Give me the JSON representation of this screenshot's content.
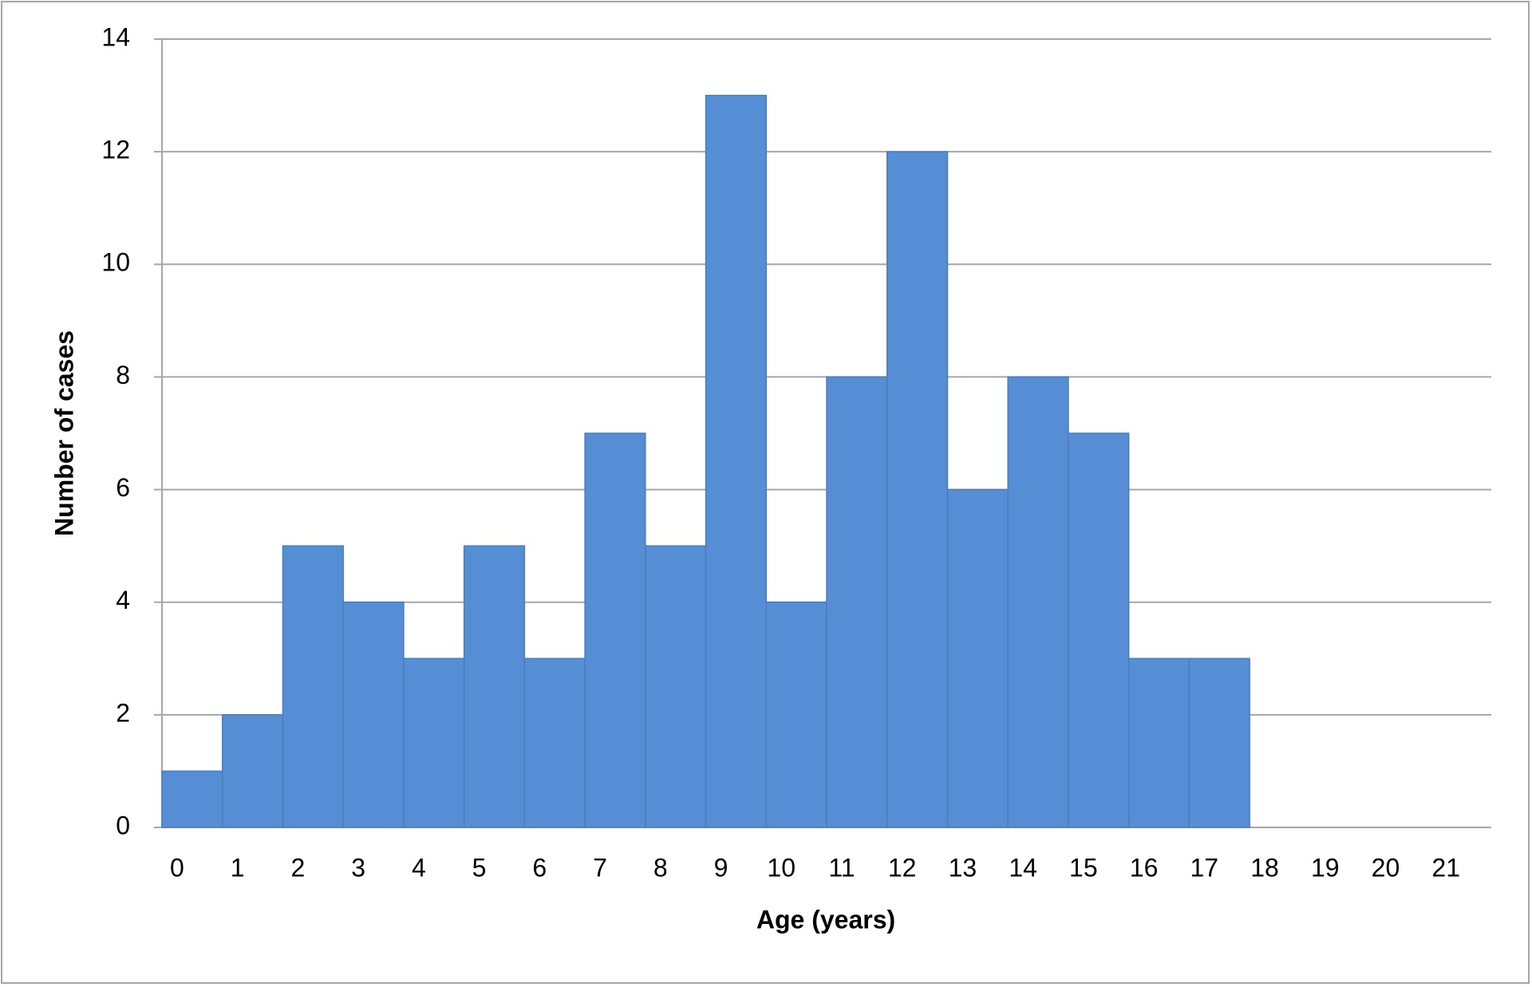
{
  "chart_data": {
    "type": "bar",
    "x_label": "Age (years)",
    "y_label": "Number of cases",
    "categories": [
      "0",
      "1",
      "2",
      "3",
      "4",
      "5",
      "6",
      "7",
      "8",
      "9",
      "10",
      "11",
      "12",
      "13",
      "14",
      "15",
      "16",
      "17",
      "18",
      "19",
      "20",
      "21"
    ],
    "values": [
      1,
      2,
      5,
      4,
      3,
      5,
      3,
      7,
      5,
      13,
      4,
      8,
      12,
      6,
      8,
      7,
      3,
      3,
      0,
      0,
      0,
      0
    ],
    "color": "#558ed5",
    "ylim": [
      0,
      14
    ],
    "yticks": [
      0,
      2,
      4,
      6,
      8,
      10,
      12,
      14
    ],
    "grid": true
  }
}
